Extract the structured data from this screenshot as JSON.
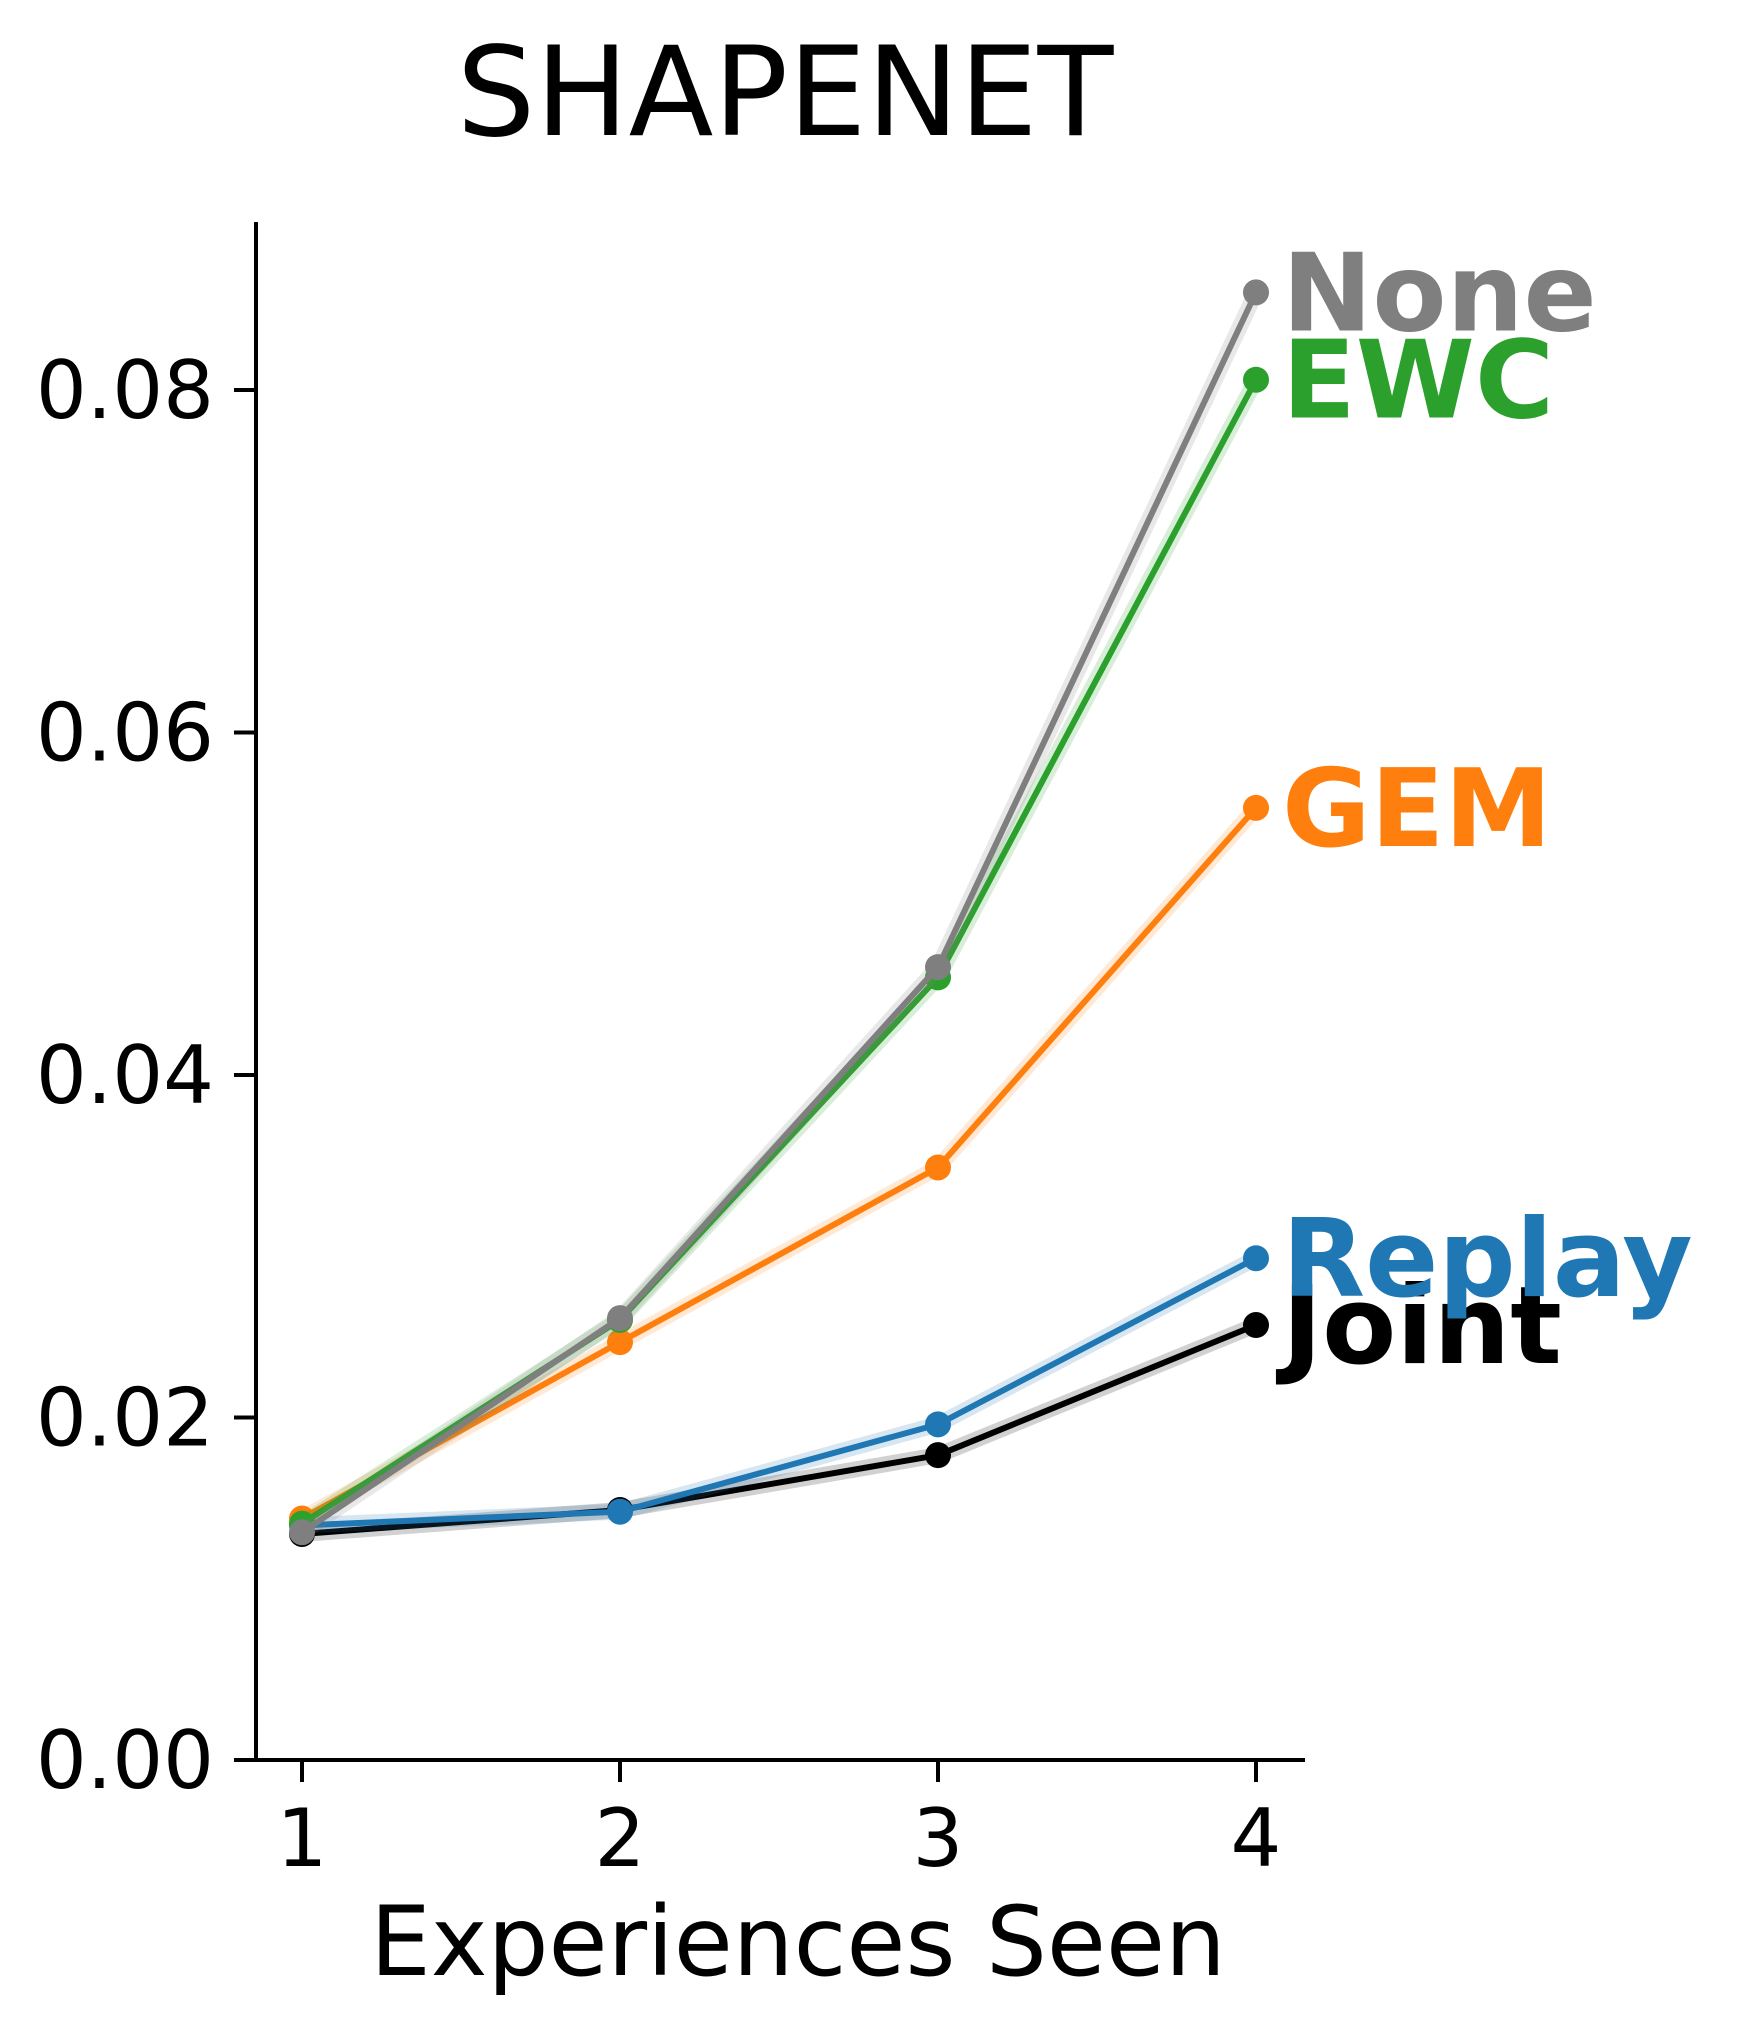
{
  "chart_data": {
    "type": "line",
    "title": "SHAPENET",
    "xlabel": "Experiences Seen",
    "ylabel": "",
    "x": [
      1,
      2,
      3,
      4
    ],
    "xticks": [
      "1",
      "2",
      "3",
      "4"
    ],
    "ylim": [
      0,
      0.09
    ],
    "yticks": [
      "0.00",
      "0.02",
      "0.04",
      "0.06",
      "0.08"
    ],
    "grid": false,
    "legend": "inline labels at line ends",
    "series": [
      {
        "name": "Joint",
        "color": "#000000",
        "values": [
          0.0132,
          0.0146,
          0.0178,
          0.0254
        ]
      },
      {
        "name": "Replay",
        "color": "#1f77b4",
        "values": [
          0.0137,
          0.0145,
          0.0196,
          0.0293
        ]
      },
      {
        "name": "GEM",
        "color": "#ff7f0e",
        "values": [
          0.0141,
          0.0244,
          0.0346,
          0.0556
        ]
      },
      {
        "name": "EWC",
        "color": "#2ca02c",
        "values": [
          0.0138,
          0.0257,
          0.0457,
          0.0806
        ]
      },
      {
        "name": "None",
        "color": "#7f7f7f",
        "values": [
          0.0133,
          0.0258,
          0.0463,
          0.0857
        ]
      }
    ]
  }
}
